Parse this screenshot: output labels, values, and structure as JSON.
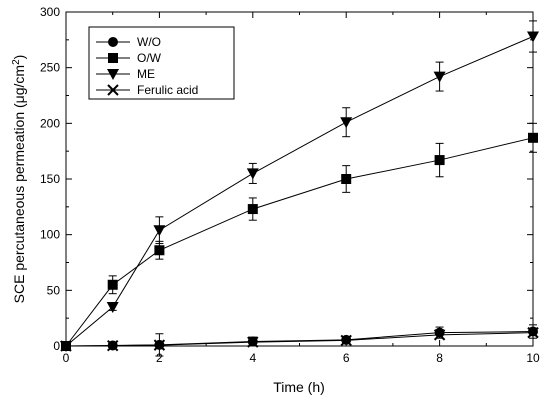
{
  "chart_data": {
    "type": "line",
    "xlabel": "Time (h)",
    "ylabel_main": "SCE percutaneous permeation (μg/cm",
    "ylabel_sup": "2",
    "ylabel_close": ")",
    "xlim": [
      0,
      10
    ],
    "ylim": [
      0,
      300
    ],
    "xticks": [
      0,
      2,
      4,
      6,
      8,
      10
    ],
    "yticks": [
      0,
      50,
      100,
      150,
      200,
      250,
      300
    ],
    "legend_position": "top-left",
    "grid": false,
    "series": [
      {
        "name": "W/O",
        "marker": "circle",
        "x": [
          0,
          1,
          2,
          4,
          6,
          8,
          10
        ],
        "y": [
          0,
          0.5,
          1,
          4,
          5.5,
          12,
          13
        ],
        "err": [
          0,
          1,
          10,
          4,
          3,
          5,
          6
        ]
      },
      {
        "name": "O/W",
        "marker": "square",
        "x": [
          0,
          1,
          2,
          4,
          6,
          8,
          10
        ],
        "y": [
          0,
          55,
          86,
          123,
          150,
          167,
          187
        ],
        "err": [
          0,
          8,
          8,
          10,
          12,
          15,
          13
        ]
      },
      {
        "name": "ME",
        "marker": "triangle-down",
        "x": [
          0,
          1,
          2,
          4,
          6,
          8,
          10
        ],
        "y": [
          0,
          35,
          104,
          155,
          201,
          242,
          278
        ],
        "err": [
          0,
          3,
          12,
          9,
          13,
          13,
          14
        ]
      },
      {
        "name": "Ferulic acid",
        "marker": "cross",
        "x": [
          0,
          1,
          2,
          4,
          6,
          8,
          10
        ],
        "y": [
          0,
          0.3,
          0.8,
          3.5,
          5,
          10,
          12
        ],
        "err": [
          0,
          0,
          0,
          0,
          0,
          0,
          0
        ]
      }
    ]
  }
}
